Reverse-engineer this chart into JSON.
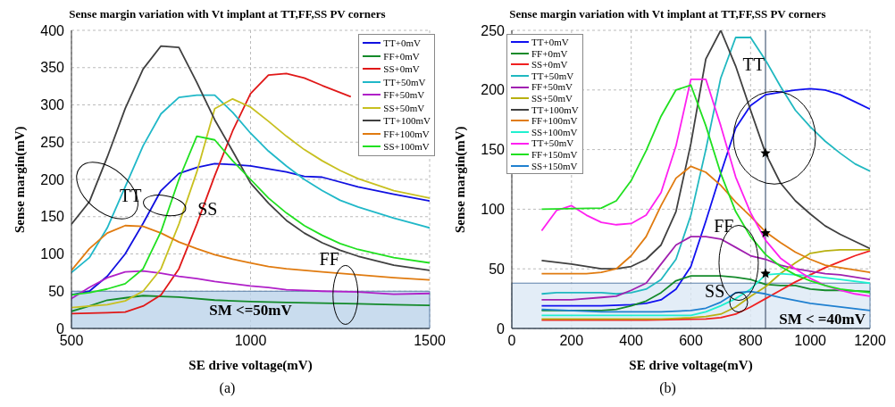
{
  "chart_data": [
    {
      "type": "line",
      "title": "Sense margin variation with Vt implant at TT,FF,SS PV corners",
      "xlabel": "SE drive voltage(mV)",
      "ylabel": "Sense margin(mV)",
      "xlim": [
        500,
        1500
      ],
      "xticks": [
        500,
        1000,
        1500
      ],
      "ylim": [
        0,
        400
      ],
      "yticks": [
        0,
        50,
        100,
        150,
        200,
        250,
        300,
        350,
        400
      ],
      "grid": true,
      "legend": "top right",
      "marker": "none",
      "line_style": "solid",
      "series": [
        {
          "name": "TT+0mV",
          "color": "#1010e0",
          "x": [
            500,
            550,
            600,
            650,
            700,
            750,
            800,
            850,
            900,
            950,
            1000,
            1100,
            1150,
            1200,
            1300,
            1400,
            1500
          ],
          "values": [
            45,
            50,
            70,
            100,
            141,
            185,
            208,
            216,
            221,
            220,
            218,
            210,
            204,
            203,
            190,
            180,
            171
          ]
        },
        {
          "name": "FF+0mV",
          "color": "#138a2a",
          "x": [
            500,
            550,
            600,
            650,
            700,
            750,
            800,
            900,
            1000,
            1100,
            1200,
            1300,
            1400,
            1500
          ],
          "values": [
            23,
            30,
            38,
            41,
            44,
            43,
            42,
            38,
            36,
            35,
            34,
            33,
            32,
            31
          ]
        },
        {
          "name": "SS+0mV",
          "color": "#e01818",
          "x": [
            500,
            600,
            650,
            700,
            750,
            800,
            850,
            900,
            950,
            1000,
            1050,
            1100,
            1150,
            1200,
            1280
          ],
          "values": [
            20,
            21,
            22,
            30,
            45,
            80,
            140,
            205,
            265,
            315,
            340,
            342,
            336,
            326,
            311
          ]
        },
        {
          "name": "TT+50mV",
          "color": "#20b8c8",
          "x": [
            500,
            550,
            600,
            650,
            700,
            750,
            800,
            850,
            900,
            950,
            1000,
            1050,
            1100,
            1150,
            1200,
            1250,
            1300,
            1400,
            1500
          ],
          "values": [
            75,
            95,
            135,
            190,
            245,
            288,
            310,
            313,
            313,
            290,
            262,
            238,
            218,
            200,
            185,
            172,
            163,
            148,
            135
          ]
        },
        {
          "name": "FF+50mV",
          "color": "#b020c8",
          "x": [
            500,
            550,
            600,
            650,
            700,
            750,
            800,
            850,
            900,
            950,
            1000,
            1050,
            1100,
            1200,
            1300,
            1400,
            1500
          ],
          "values": [
            40,
            55,
            68,
            76,
            77,
            74,
            70,
            67,
            63,
            60,
            57,
            55,
            52,
            50,
            49,
            46,
            47
          ]
        },
        {
          "name": "SS+50mV",
          "color": "#c8c020",
          "x": [
            500,
            550,
            600,
            650,
            700,
            750,
            800,
            850,
            900,
            950,
            1000,
            1050,
            1100,
            1150,
            1200,
            1250,
            1300,
            1400,
            1500
          ],
          "values": [
            28,
            30,
            32,
            37,
            50,
            80,
            140,
            210,
            295,
            308,
            297,
            278,
            258,
            240,
            225,
            212,
            201,
            185,
            175
          ]
        },
        {
          "name": "TT+100mV",
          "color": "#404040",
          "x": [
            500,
            550,
            600,
            650,
            700,
            750,
            800,
            850,
            900,
            950,
            1000,
            1050,
            1100,
            1150,
            1200,
            1250,
            1300,
            1400,
            1500
          ],
          "values": [
            140,
            170,
            230,
            295,
            348,
            379,
            377,
            330,
            280,
            238,
            195,
            168,
            145,
            128,
            115,
            105,
            97,
            85,
            78
          ]
        },
        {
          "name": "FF+100mV",
          "color": "#e07b10",
          "x": [
            500,
            550,
            600,
            650,
            700,
            750,
            800,
            850,
            900,
            950,
            1000,
            1050,
            1100,
            1200,
            1300,
            1400,
            1500
          ],
          "values": [
            78,
            107,
            128,
            138,
            137,
            128,
            116,
            107,
            99,
            93,
            88,
            83,
            80,
            76,
            72,
            68,
            65
          ]
        },
        {
          "name": "SS+100mV",
          "color": "#20e020",
          "x": [
            500,
            550,
            600,
            650,
            700,
            750,
            800,
            850,
            900,
            950,
            1000,
            1050,
            1100,
            1150,
            1200,
            1250,
            1300,
            1400,
            1500
          ],
          "values": [
            45,
            48,
            53,
            60,
            80,
            130,
            200,
            258,
            253,
            225,
            200,
            175,
            155,
            138,
            125,
            114,
            106,
            95,
            88
          ]
        }
      ],
      "bands": [
        {
          "axis": "y",
          "from": 0,
          "to": 50,
          "label": "SM <=50mV",
          "color": "#bcd3ea"
        }
      ],
      "annotations": [
        "TT",
        "SS",
        "FF",
        "(a)"
      ]
    },
    {
      "type": "line",
      "title": "Sense margin variation with Vt implant at TT,FF,SS PV corners",
      "xlabel": "SE drive voltage(mV)",
      "ylabel": "Sense margin(mV)",
      "xlim": [
        0,
        1200
      ],
      "xticks": [
        0,
        200,
        400,
        600,
        800,
        1000,
        1200
      ],
      "ylim": [
        0,
        250
      ],
      "yticks": [
        0,
        50,
        100,
        150,
        200,
        250
      ],
      "grid": true,
      "legend": "top left",
      "marker": "none",
      "line_style": "solid",
      "series": [
        {
          "name": "TT+0mV",
          "color": "#1010f0",
          "x": [
            100,
            300,
            400,
            450,
            500,
            550,
            600,
            650,
            700,
            750,
            800,
            850,
            900,
            950,
            1000,
            1050,
            1100,
            1150,
            1200
          ],
          "values": [
            19,
            19,
            20,
            21,
            24,
            33,
            52,
            90,
            130,
            168,
            187,
            196,
            198,
            200,
            201,
            200,
            196,
            190,
            184
          ]
        },
        {
          "name": "FF+0mV",
          "color": "#138a2a",
          "x": [
            100,
            200,
            300,
            350,
            400,
            450,
            500,
            550,
            600,
            650,
            700,
            750,
            800,
            850,
            900,
            950,
            1000,
            1050,
            1100,
            1200
          ],
          "values": [
            15,
            15,
            15,
            16,
            19,
            23,
            30,
            40,
            44,
            44,
            44,
            43,
            41,
            37,
            36,
            36,
            33,
            32,
            32,
            31
          ]
        },
        {
          "name": "SS+0mV",
          "color": "#f02020",
          "x": [
            100,
            450,
            650,
            700,
            750,
            800,
            850,
            900,
            950,
            1000,
            1050,
            1100,
            1150,
            1200
          ],
          "values": [
            7,
            7,
            8,
            9,
            12,
            18,
            25,
            32,
            39,
            45,
            51,
            56,
            61,
            65
          ]
        },
        {
          "name": "TT+50mV",
          "color": "#20b8c0",
          "x": [
            100,
            150,
            200,
            300,
            350,
            400,
            450,
            500,
            550,
            600,
            650,
            700,
            750,
            800,
            850,
            900,
            950,
            1000,
            1050,
            1100,
            1150,
            1200
          ],
          "values": [
            29,
            30,
            30,
            30,
            29,
            30,
            33,
            41,
            58,
            95,
            150,
            210,
            244,
            244,
            225,
            203,
            183,
            169,
            157,
            147,
            138,
            132
          ]
        },
        {
          "name": "FF+50mV",
          "color": "#a020b0",
          "x": [
            100,
            200,
            300,
            350,
            400,
            450,
            500,
            550,
            600,
            650,
            700,
            750,
            800,
            850,
            900,
            950,
            1000,
            1050,
            1100,
            1200
          ],
          "values": [
            24,
            24,
            26,
            27,
            32,
            38,
            54,
            70,
            77,
            77,
            75,
            68,
            61,
            58,
            53,
            50,
            48,
            46,
            45,
            41
          ]
        },
        {
          "name": "SS+50mV",
          "color": "#b8b010",
          "x": [
            100,
            500,
            600,
            650,
            700,
            750,
            800,
            850,
            900,
            950,
            1000,
            1050,
            1100,
            1200
          ],
          "values": [
            8,
            8,
            9,
            10,
            12,
            18,
            27,
            35,
            46,
            55,
            63,
            65,
            66,
            66
          ]
        },
        {
          "name": "TT+100mV",
          "color": "#404040",
          "x": [
            100,
            200,
            300,
            350,
            400,
            450,
            500,
            550,
            600,
            650,
            700,
            750,
            800,
            850,
            900,
            950,
            1000,
            1050,
            1100,
            1150,
            1200
          ],
          "values": [
            57,
            54,
            50,
            50,
            52,
            58,
            70,
            98,
            155,
            226,
            250,
            220,
            183,
            147,
            122,
            107,
            96,
            86,
            79,
            73,
            67
          ]
        },
        {
          "name": "FF+100mV",
          "color": "#e07b10",
          "x": [
            100,
            250,
            300,
            350,
            400,
            450,
            500,
            550,
            600,
            650,
            700,
            750,
            800,
            850,
            900,
            950,
            1000,
            1050,
            1100,
            1200
          ],
          "values": [
            46,
            46,
            47,
            50,
            61,
            77,
            103,
            126,
            136,
            131,
            120,
            106,
            94,
            81,
            72,
            64,
            58,
            53,
            51,
            47
          ]
        },
        {
          "name": "SS+100mV",
          "color": "#20f0d0",
          "x": [
            100,
            600,
            650,
            700,
            750,
            800,
            850,
            900,
            950,
            1000,
            1100,
            1200
          ],
          "values": [
            11,
            11,
            14,
            19,
            25,
            33,
            45,
            46,
            45,
            44,
            41,
            38
          ]
        },
        {
          "name": "TT+50mV",
          "color": "#ff20f0",
          "x": [
            100,
            150,
            200,
            250,
            300,
            350,
            400,
            450,
            500,
            550,
            600,
            650,
            700,
            750,
            800,
            850,
            900,
            950,
            1000,
            1050,
            1100,
            1150,
            1200
          ],
          "values": [
            82,
            99,
            103,
            95,
            89,
            87,
            88,
            95,
            114,
            153,
            209,
            209,
            170,
            127,
            97,
            74,
            59,
            50,
            42,
            36,
            32,
            29,
            27
          ]
        },
        {
          "name": "FF+150mV",
          "color": "#20e020",
          "x": [
            100,
            300,
            350,
            400,
            450,
            500,
            550,
            600,
            650,
            700,
            750,
            800,
            850,
            900,
            950,
            1000,
            1050,
            1100,
            1200
          ],
          "values": [
            100,
            101,
            107,
            124,
            149,
            178,
            200,
            204,
            170,
            130,
            98,
            77,
            62,
            52,
            45,
            40,
            36,
            33,
            30
          ]
        },
        {
          "name": "SS+150mV",
          "color": "#2080d0",
          "x": [
            100,
            300,
            500,
            600,
            650,
            700,
            750,
            800,
            850,
            900,
            1000,
            1100,
            1200
          ],
          "values": [
            16,
            14,
            14,
            15,
            17,
            22,
            30,
            31,
            29,
            26,
            21,
            18,
            15
          ]
        },
        {
          "type": "scatter",
          "marker": "star",
          "color": "#000000",
          "x": [
            850,
            850,
            850
          ],
          "values": [
            147,
            80,
            46
          ]
        }
      ],
      "ref_lines": [
        {
          "axis": "x",
          "value": 850,
          "color": "#6f7f95"
        }
      ],
      "bands": [
        {
          "axis": "y",
          "from": 0,
          "to": 38,
          "label": "SM < =40mV",
          "color": "#dce8f5"
        }
      ],
      "annotations": [
        "TT",
        "FF",
        "SS",
        "(b)"
      ]
    }
  ]
}
